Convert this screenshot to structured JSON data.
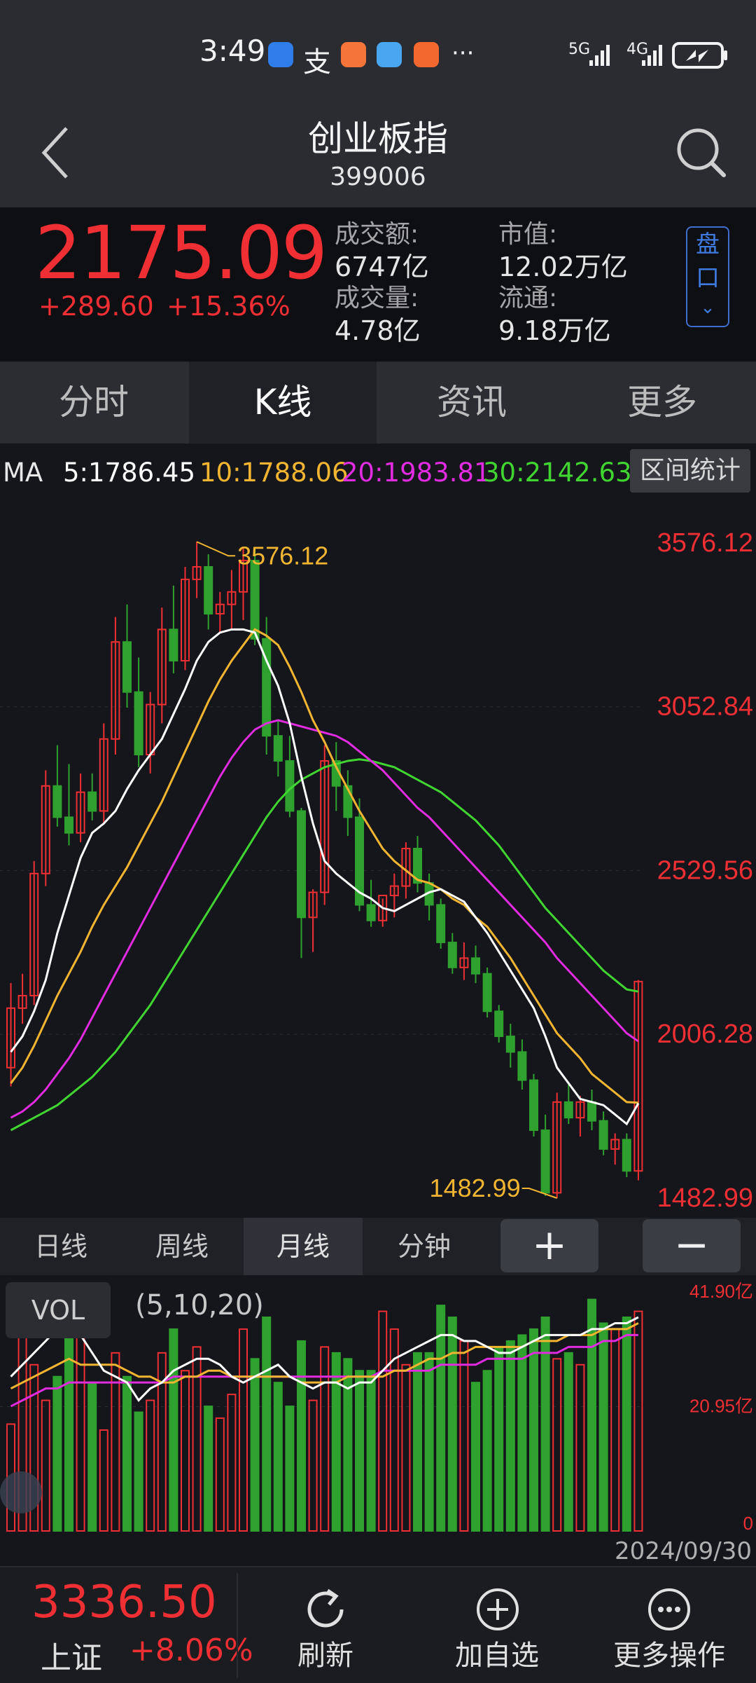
{
  "status_bar": {
    "time": "3:49",
    "more": "···",
    "signal1": "5G",
    "signal2": "4G"
  },
  "header": {
    "back": "back-icon",
    "title": "创业板指",
    "code": "399006",
    "search": "search-icon"
  },
  "quote": {
    "price": "2175.09",
    "change": "+289.60",
    "change_pct": "+15.36%",
    "turnover_label": "成交额:",
    "turnover": "6747亿",
    "volume_label": "成交量:",
    "volume": "4.78亿",
    "mktcap_label": "市值:",
    "mktcap": "12.02万亿",
    "float_label": "流通:",
    "float": "9.18万亿",
    "panel_button": [
      "盘",
      "口"
    ]
  },
  "tabs": [
    {
      "label": "分时"
    },
    {
      "label": "K线"
    },
    {
      "label": "资讯"
    },
    {
      "label": "更多"
    }
  ],
  "ma": {
    "label": "MA",
    "ma5": "5:1786.45",
    "ma10": "10:1788.06",
    "ma20": "20:1983.81",
    "ma30": "30:2142.63",
    "range_button": "区间统计"
  },
  "colors": {
    "up": "#ef2f33",
    "down": "#2fa12f",
    "ma5": "#ffffff",
    "ma10": "#f2b531",
    "ma20": "#e12be1",
    "ma30": "#40d531"
  },
  "chart_data": {
    "type": "candlestick",
    "ylim": [
      1482.99,
      3576.12
    ],
    "price_labels": [
      "3576.12",
      "3052.84",
      "2529.56",
      "2006.28",
      "1482.99"
    ],
    "max_annotation": "3576.12",
    "min_annotation": "1482.99",
    "candles": [
      {
        "o": 1900,
        "h": 2170,
        "l": 1840,
        "c": 2090
      },
      {
        "o": 2090,
        "h": 2200,
        "l": 2040,
        "c": 2130
      },
      {
        "o": 2130,
        "h": 2560,
        "l": 2100,
        "c": 2520
      },
      {
        "o": 2520,
        "h": 2850,
        "l": 2480,
        "c": 2800
      },
      {
        "o": 2800,
        "h": 2930,
        "l": 2670,
        "c": 2700
      },
      {
        "o": 2700,
        "h": 2870,
        "l": 2610,
        "c": 2650
      },
      {
        "o": 2650,
        "h": 2840,
        "l": 2620,
        "c": 2780
      },
      {
        "o": 2780,
        "h": 2840,
        "l": 2690,
        "c": 2720
      },
      {
        "o": 2720,
        "h": 3000,
        "l": 2680,
        "c": 2950
      },
      {
        "o": 2950,
        "h": 3340,
        "l": 2900,
        "c": 3260
      },
      {
        "o": 3260,
        "h": 3380,
        "l": 3050,
        "c": 3100
      },
      {
        "o": 3100,
        "h": 3210,
        "l": 2860,
        "c": 2900
      },
      {
        "o": 2900,
        "h": 3100,
        "l": 2840,
        "c": 3060
      },
      {
        "o": 3060,
        "h": 3370,
        "l": 3000,
        "c": 3300
      },
      {
        "o": 3300,
        "h": 3440,
        "l": 3160,
        "c": 3200
      },
      {
        "o": 3200,
        "h": 3500,
        "l": 3170,
        "c": 3460
      },
      {
        "o": 3460,
        "h": 3580,
        "l": 3400,
        "c": 3500
      },
      {
        "o": 3500,
        "h": 3540,
        "l": 3300,
        "c": 3350
      },
      {
        "o": 3350,
        "h": 3420,
        "l": 3290,
        "c": 3380
      },
      {
        "o": 3380,
        "h": 3490,
        "l": 3300,
        "c": 3420
      },
      {
        "o": 3420,
        "h": 3560,
        "l": 3330,
        "c": 3520
      },
      {
        "o": 3520,
        "h": 3560,
        "l": 3250,
        "c": 3270
      },
      {
        "o": 3270,
        "h": 3340,
        "l": 2900,
        "c": 2960
      },
      {
        "o": 2960,
        "h": 3010,
        "l": 2830,
        "c": 2880
      },
      {
        "o": 2880,
        "h": 2960,
        "l": 2700,
        "c": 2720
      },
      {
        "o": 2720,
        "h": 2730,
        "l": 2250,
        "c": 2380
      },
      {
        "o": 2380,
        "h": 2470,
        "l": 2270,
        "c": 2460
      },
      {
        "o": 2460,
        "h": 2930,
        "l": 2420,
        "c": 2880
      },
      {
        "o": 2880,
        "h": 2940,
        "l": 2720,
        "c": 2800
      },
      {
        "o": 2800,
        "h": 2850,
        "l": 2640,
        "c": 2700
      },
      {
        "o": 2700,
        "h": 2760,
        "l": 2400,
        "c": 2420
      },
      {
        "o": 2420,
        "h": 2500,
        "l": 2350,
        "c": 2370
      },
      {
        "o": 2370,
        "h": 2440,
        "l": 2350,
        "c": 2450
      },
      {
        "o": 2450,
        "h": 2520,
        "l": 2380,
        "c": 2480
      },
      {
        "o": 2480,
        "h": 2620,
        "l": 2440,
        "c": 2600
      },
      {
        "o": 2600,
        "h": 2640,
        "l": 2460,
        "c": 2490
      },
      {
        "o": 2490,
        "h": 2520,
        "l": 2370,
        "c": 2420
      },
      {
        "o": 2420,
        "h": 2440,
        "l": 2280,
        "c": 2300
      },
      {
        "o": 2300,
        "h": 2330,
        "l": 2200,
        "c": 2220
      },
      {
        "o": 2220,
        "h": 2300,
        "l": 2180,
        "c": 2250
      },
      {
        "o": 2250,
        "h": 2290,
        "l": 2170,
        "c": 2200
      },
      {
        "o": 2200,
        "h": 2220,
        "l": 2060,
        "c": 2080
      },
      {
        "o": 2080,
        "h": 2100,
        "l": 1980,
        "c": 2000
      },
      {
        "o": 2000,
        "h": 2040,
        "l": 1900,
        "c": 1950
      },
      {
        "o": 1950,
        "h": 1990,
        "l": 1830,
        "c": 1860
      },
      {
        "o": 1860,
        "h": 1880,
        "l": 1680,
        "c": 1700
      },
      {
        "o": 1700,
        "h": 1750,
        "l": 1490,
        "c": 1500
      },
      {
        "o": 1500,
        "h": 1820,
        "l": 1483,
        "c": 1790
      },
      {
        "o": 1790,
        "h": 1850,
        "l": 1720,
        "c": 1740
      },
      {
        "o": 1740,
        "h": 1810,
        "l": 1680,
        "c": 1790
      },
      {
        "o": 1790,
        "h": 1830,
        "l": 1700,
        "c": 1730
      },
      {
        "o": 1730,
        "h": 1760,
        "l": 1620,
        "c": 1640
      },
      {
        "o": 1640,
        "h": 1690,
        "l": 1590,
        "c": 1670
      },
      {
        "o": 1670,
        "h": 1690,
        "l": 1550,
        "c": 1570
      },
      {
        "o": 1570,
        "h": 2180,
        "l": 1540,
        "c": 2175
      }
    ],
    "ma5": [
      1950,
      2000,
      2080,
      2180,
      2330,
      2450,
      2570,
      2650,
      2680,
      2720,
      2790,
      2850,
      2900,
      2950,
      3030,
      3110,
      3200,
      3260,
      3290,
      3300,
      3300,
      3290,
      3200,
      3120,
      3000,
      2830,
      2680,
      2560,
      2520,
      2490,
      2460,
      2440,
      2410,
      2400,
      2420,
      2440,
      2460,
      2470,
      2450,
      2430,
      2380,
      2330,
      2270,
      2210,
      2150,
      2090,
      2000,
      1900,
      1850,
      1800,
      1790,
      1780,
      1750,
      1720,
      1786
    ],
    "ma10": [
      1850,
      1900,
      1970,
      2050,
      2130,
      2200,
      2270,
      2350,
      2420,
      2480,
      2540,
      2610,
      2680,
      2750,
      2830,
      2910,
      2990,
      3070,
      3140,
      3200,
      3250,
      3300,
      3280,
      3250,
      3180,
      3100,
      3010,
      2940,
      2860,
      2790,
      2720,
      2660,
      2600,
      2560,
      2530,
      2500,
      2490,
      2470,
      2440,
      2420,
      2380,
      2350,
      2300,
      2250,
      2190,
      2130,
      2070,
      2010,
      1970,
      1930,
      1880,
      1850,
      1820,
      1790,
      1788
    ],
    "ma20": [
      1740,
      1760,
      1790,
      1830,
      1880,
      1930,
      1990,
      2060,
      2130,
      2200,
      2270,
      2340,
      2410,
      2480,
      2550,
      2620,
      2690,
      2760,
      2830,
      2890,
      2940,
      2980,
      3000,
      3010,
      3000,
      2990,
      2980,
      2970,
      2960,
      2940,
      2910,
      2880,
      2850,
      2810,
      2770,
      2730,
      2700,
      2660,
      2620,
      2580,
      2540,
      2500,
      2460,
      2420,
      2380,
      2340,
      2300,
      2250,
      2210,
      2170,
      2130,
      2090,
      2050,
      2010,
      1984
    ],
    "ma30": [
      1700,
      1720,
      1740,
      1760,
      1780,
      1810,
      1840,
      1870,
      1910,
      1950,
      2000,
      2050,
      2100,
      2160,
      2220,
      2280,
      2340,
      2400,
      2460,
      2520,
      2580,
      2640,
      2700,
      2750,
      2790,
      2820,
      2840,
      2860,
      2870,
      2880,
      2885,
      2880,
      2870,
      2860,
      2840,
      2820,
      2800,
      2780,
      2750,
      2720,
      2690,
      2650,
      2610,
      2560,
      2510,
      2460,
      2410,
      2370,
      2330,
      2290,
      2250,
      2210,
      2180,
      2150,
      2143
    ],
    "vol_ylim": [
      0,
      41.9
    ],
    "vol_labels": [
      "41.90亿",
      "20.95亿",
      "0"
    ],
    "volumes": [
      18,
      35,
      28,
      22,
      26,
      41,
      33,
      25,
      17,
      30,
      26,
      20,
      22,
      30,
      34,
      27,
      31,
      21,
      19,
      23,
      34,
      29,
      36,
      25,
      21,
      32,
      22,
      31,
      30,
      29,
      27,
      27,
      37,
      34,
      28,
      30,
      30,
      38,
      36,
      32,
      25,
      27,
      31,
      32,
      33,
      34,
      36,
      29,
      30,
      28,
      39,
      35,
      34,
      36,
      37
    ],
    "vol_ma5": [
      26,
      28,
      30,
      32,
      34,
      36,
      33,
      30,
      27,
      26,
      25,
      22,
      24,
      25,
      27,
      28,
      29,
      29,
      28,
      26,
      25,
      26,
      27,
      28,
      26,
      25,
      24,
      25,
      25,
      24,
      25,
      25,
      27,
      29,
      30,
      31,
      32,
      33,
      33,
      32,
      32,
      31,
      30,
      30,
      31,
      32,
      33,
      33,
      33,
      33,
      34,
      34,
      35,
      35,
      36
    ],
    "vol_ma10": [
      24,
      25,
      26,
      27,
      28,
      29,
      28,
      28,
      28,
      28,
      27,
      26,
      26,
      25,
      25,
      26,
      26,
      27,
      27,
      26,
      26,
      26,
      26,
      26,
      26,
      25,
      25,
      25,
      25,
      26,
      26,
      26,
      26,
      27,
      27,
      28,
      29,
      29,
      30,
      30,
      31,
      31,
      31,
      31,
      31,
      32,
      32,
      32,
      33,
      33,
      33,
      34,
      34,
      34,
      35
    ],
    "vol_ma20": [
      21,
      22,
      23,
      24,
      24,
      25,
      25,
      25,
      25,
      25,
      25,
      25,
      25,
      25,
      26,
      26,
      26,
      26,
      26,
      26,
      26,
      26,
      26,
      26,
      26,
      26,
      26,
      26,
      26,
      26,
      26,
      26,
      27,
      27,
      27,
      27,
      27,
      28,
      28,
      28,
      28,
      29,
      29,
      29,
      29,
      30,
      30,
      30,
      31,
      31,
      31,
      32,
      32,
      33,
      33
    ]
  },
  "periods": [
    {
      "label": "日线"
    },
    {
      "label": "周线"
    },
    {
      "label": "月线"
    },
    {
      "label": "分钟"
    }
  ],
  "zoom": {
    "in": "+",
    "out": "−"
  },
  "volume_panel": {
    "label": "VOL",
    "params": "(5,10,20)",
    "date": "2024/09/30"
  },
  "bottom": {
    "sh_price": "3336.50",
    "sh_name": "上证",
    "sh_pct": "+8.06%",
    "refresh": "刷新",
    "add": "加自选",
    "more": "更多操作"
  }
}
